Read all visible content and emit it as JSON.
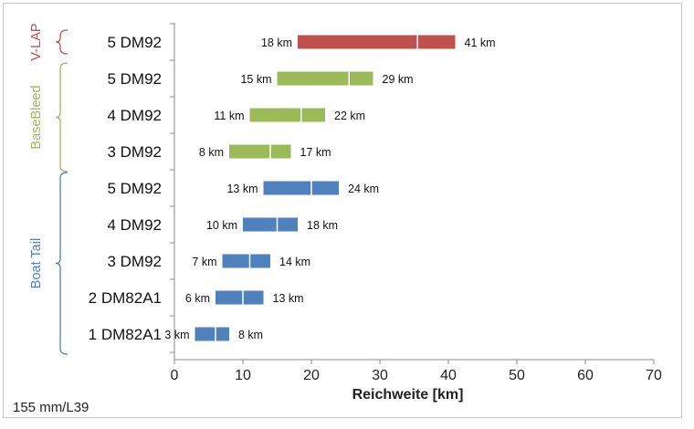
{
  "note": "155  mm/L39",
  "chart_data": {
    "type": "bar",
    "orientation": "horizontal-range",
    "xlabel": "Reichweite [km]",
    "xlim": [
      0,
      70
    ],
    "xticks": [
      0,
      10,
      20,
      30,
      40,
      50,
      60,
      70
    ],
    "grid": false,
    "unit_suffix": "km",
    "groups": [
      {
        "name": "V-LAP",
        "color": "#c0504d",
        "rows": [
          0
        ]
      },
      {
        "name": "BaseBleed",
        "color": "#9bbb59",
        "rows": [
          1,
          2,
          3
        ]
      },
      {
        "name": "Boat Tail",
        "color": "#4f81bd",
        "rows": [
          4,
          5,
          6,
          7,
          8
        ]
      }
    ],
    "categories": [
      "5 DM92",
      "5 DM92",
      "4 DM92",
      "3 DM92",
      "5 DM92",
      "4 DM92",
      "3 DM92",
      "2 DM82A1",
      "1 DM82A1"
    ],
    "ranges": [
      {
        "min": 18,
        "max": 41,
        "mid": 35.5,
        "color": "#c0504d"
      },
      {
        "min": 15,
        "max": 29,
        "mid": 25.5,
        "color": "#9bbb59"
      },
      {
        "min": 11,
        "max": 22,
        "mid": 18.5,
        "color": "#9bbb59"
      },
      {
        "min": 8,
        "max": 17,
        "mid": 14,
        "color": "#9bbb59"
      },
      {
        "min": 13,
        "max": 24,
        "mid": 20,
        "color": "#4f81bd"
      },
      {
        "min": 10,
        "max": 18,
        "mid": 15,
        "color": "#4f81bd"
      },
      {
        "min": 7,
        "max": 14,
        "mid": 11,
        "color": "#4f81bd"
      },
      {
        "min": 6,
        "max": 13,
        "mid": 10,
        "color": "#4f81bd"
      },
      {
        "min": 3,
        "max": 8,
        "mid": 6,
        "color": "#4f81bd"
      }
    ]
  }
}
